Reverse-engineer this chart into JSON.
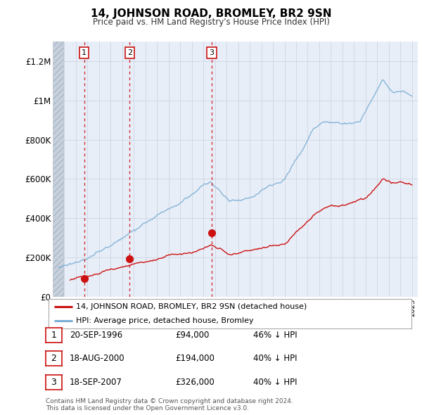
{
  "title": "14, JOHNSON ROAD, BROMLEY, BR2 9SN",
  "subtitle": "Price paid vs. HM Land Registry's House Price Index (HPI)",
  "hpi_color": "#7bafd4",
  "price_color": "#cc1111",
  "plot_bg_color": "#e8eef8",
  "hatch_region_color": "#c8d0dc",
  "sale_points": [
    {
      "year": 1996.72,
      "price": 94000,
      "label": "1"
    },
    {
      "year": 2000.63,
      "price": 194000,
      "label": "2"
    },
    {
      "year": 2007.72,
      "price": 326000,
      "label": "3"
    }
  ],
  "legend_items": [
    {
      "label": "14, JOHNSON ROAD, BROMLEY, BR2 9SN (detached house)",
      "color": "#cc1111"
    },
    {
      "label": "HPI: Average price, detached house, Bromley",
      "color": "#7bafd4"
    }
  ],
  "table_rows": [
    {
      "num": "1",
      "date": "20-SEP-1996",
      "price": "£94,000",
      "hpi": "46% ↓ HPI"
    },
    {
      "num": "2",
      "date": "18-AUG-2000",
      "price": "£194,000",
      "hpi": "40% ↓ HPI"
    },
    {
      "num": "3",
      "date": "18-SEP-2007",
      "price": "£326,000",
      "hpi": "40% ↓ HPI"
    }
  ],
  "footnote": "Contains HM Land Registry data © Crown copyright and database right 2024.\nThis data is licensed under the Open Government Licence v3.0.",
  "ytick_labels": [
    "£0",
    "£200K",
    "£400K",
    "£600K",
    "£800K",
    "£1M",
    "£1.2M"
  ],
  "ytick_values": [
    0,
    200000,
    400000,
    600000,
    800000,
    1000000,
    1200000
  ],
  "ylim": [
    0,
    1300000
  ],
  "xlim_start": 1994.0,
  "xlim_end": 2025.5
}
